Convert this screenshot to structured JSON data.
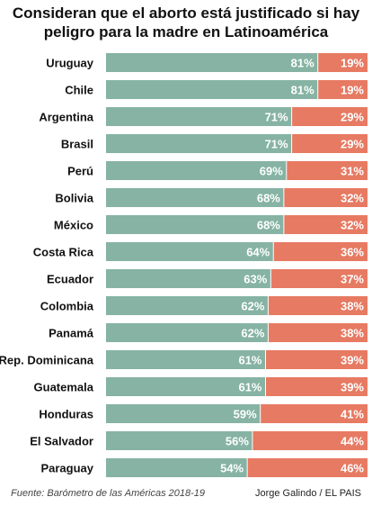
{
  "title_line1": "Consideran que el aborto está justificado si hay",
  "title_line2": "peligro para la madre en Latinoamérica",
  "source": "Fuente: Barómetro de las Américas 2018-19",
  "credit": "Jorge Galindo / EL PAIS",
  "colors": {
    "yes": "#86b3a4",
    "no": "#e77a62",
    "label": "#111111",
    "value_text": "#ffffff"
  },
  "chart_data": {
    "type": "bar",
    "orientation": "horizontal",
    "stacked": true,
    "percent": true,
    "title": "Consideran que el aborto está justificado si hay peligro para la madre en Latinoamérica",
    "categories": [
      "Uruguay",
      "Chile",
      "Argentina",
      "Brasil",
      "Perú",
      "Bolivia",
      "México",
      "Costa Rica",
      "Ecuador",
      "Colombia",
      "Panamá",
      "Rep. Dominicana",
      "Guatemala",
      "Honduras",
      "El Salvador",
      "Paraguay"
    ],
    "series": [
      {
        "values": [
          81,
          81,
          71,
          71,
          69,
          68,
          68,
          64,
          63,
          62,
          62,
          61,
          61,
          59,
          56,
          54
        ],
        "labels": [
          "81%",
          "81%",
          "71%",
          "71%",
          "69%",
          "68%",
          "68%",
          "64%",
          "63%",
          "62%",
          "62%",
          "61%",
          "61%",
          "59%",
          "56%",
          "54%"
        ]
      },
      {
        "values": [
          19,
          19,
          29,
          29,
          31,
          32,
          32,
          36,
          37,
          38,
          38,
          39,
          39,
          41,
          44,
          46
        ],
        "labels": [
          "19%",
          "19%",
          "29%",
          "29%",
          "31%",
          "32%",
          "32%",
          "36%",
          "37%",
          "38%",
          "38%",
          "39%",
          "39%",
          "41%",
          "44%",
          "46%"
        ]
      }
    ]
  }
}
